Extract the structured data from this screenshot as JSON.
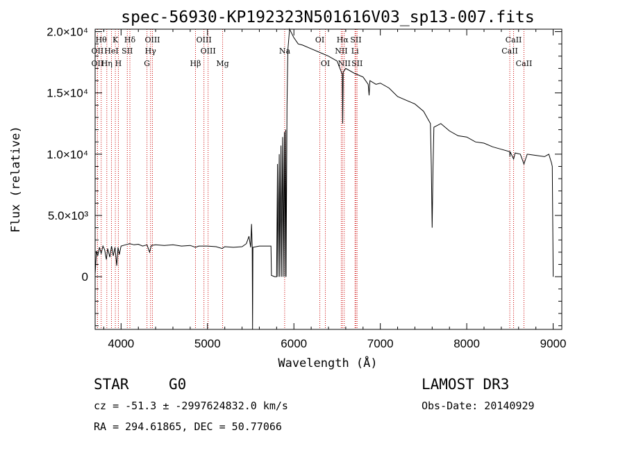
{
  "chart_data": {
    "type": "line",
    "title": "spec-56930-KP192323N501616V03_sp13-007.fits",
    "xlabel": "Wavelength (Å)",
    "ylabel": "Flux (relative)",
    "xlim": [
      3700,
      9100
    ],
    "ylim": [
      -4300,
      20200
    ],
    "x_ticks": [
      {
        "value": 4000,
        "label": "4000"
      },
      {
        "value": 5000,
        "label": "5000"
      },
      {
        "value": 6000,
        "label": "6000"
      },
      {
        "value": 7000,
        "label": "7000"
      },
      {
        "value": 8000,
        "label": "8000"
      },
      {
        "value": 9000,
        "label": "9000"
      }
    ],
    "y_ticks": [
      {
        "value": 0,
        "label": "0"
      },
      {
        "value": 5000,
        "label": "5.0×10³"
      },
      {
        "value": 10000,
        "label": "1.0×10⁴"
      },
      {
        "value": 15000,
        "label": "1.5×10⁴"
      },
      {
        "value": 20000,
        "label": "2.0×10⁴"
      }
    ],
    "spectrum": [
      [
        3700,
        200
      ],
      [
        3715,
        2100
      ],
      [
        3730,
        1700
      ],
      [
        3750,
        2400
      ],
      [
        3770,
        1900
      ],
      [
        3790,
        2500
      ],
      [
        3810,
        2200
      ],
      [
        3830,
        1400
      ],
      [
        3845,
        2300
      ],
      [
        3870,
        1600
      ],
      [
        3890,
        2500
      ],
      [
        3910,
        1700
      ],
      [
        3930,
        2400
      ],
      [
        3950,
        900
      ],
      [
        3965,
        2400
      ],
      [
        3980,
        1800
      ],
      [
        4000,
        2500
      ],
      [
        4050,
        2600
      ],
      [
        4100,
        2700
      ],
      [
        4150,
        2600
      ],
      [
        4200,
        2650
      ],
      [
        4250,
        2500
      ],
      [
        4300,
        2600
      ],
      [
        4330,
        2000
      ],
      [
        4350,
        2550
      ],
      [
        4400,
        2600
      ],
      [
        4500,
        2550
      ],
      [
        4600,
        2600
      ],
      [
        4700,
        2500
      ],
      [
        4800,
        2550
      ],
      [
        4860,
        2400
      ],
      [
        4900,
        2500
      ],
      [
        5000,
        2500
      ],
      [
        5100,
        2450
      ],
      [
        5170,
        2300
      ],
      [
        5200,
        2450
      ],
      [
        5300,
        2400
      ],
      [
        5400,
        2450
      ],
      [
        5450,
        2700
      ],
      [
        5480,
        3300
      ],
      [
        5500,
        2400
      ],
      [
        5510,
        4300
      ],
      [
        5518,
        2400
      ],
      [
        5522,
        -4300
      ],
      [
        5526,
        2400
      ],
      [
        5600,
        2500
      ],
      [
        5700,
        2500
      ],
      [
        5735,
        2500
      ],
      [
        5740,
        100
      ],
      [
        5780,
        0
      ],
      [
        5800,
        0
      ],
      [
        5810,
        9200
      ],
      [
        5815,
        0
      ],
      [
        5830,
        10000
      ],
      [
        5835,
        0
      ],
      [
        5850,
        10700
      ],
      [
        5855,
        0
      ],
      [
        5870,
        11400
      ],
      [
        5875,
        0
      ],
      [
        5890,
        11800
      ],
      [
        5895,
        0
      ],
      [
        5905,
        12000
      ],
      [
        5910,
        0
      ],
      [
        5920,
        14000
      ],
      [
        5930,
        18500
      ],
      [
        5950,
        20200
      ],
      [
        6000,
        19500
      ],
      [
        6050,
        19000
      ],
      [
        6100,
        18900
      ],
      [
        6200,
        18600
      ],
      [
        6300,
        18300
      ],
      [
        6400,
        18000
      ],
      [
        6500,
        17600
      ],
      [
        6560,
        16500
      ],
      [
        6565,
        12500
      ],
      [
        6570,
        16700
      ],
      [
        6600,
        17000
      ],
      [
        6700,
        16600
      ],
      [
        6800,
        16300
      ],
      [
        6860,
        15700
      ],
      [
        6870,
        14800
      ],
      [
        6880,
        16000
      ],
      [
        6950,
        15700
      ],
      [
        7000,
        15800
      ],
      [
        7100,
        15400
      ],
      [
        7200,
        14700
      ],
      [
        7300,
        14400
      ],
      [
        7400,
        14100
      ],
      [
        7500,
        13500
      ],
      [
        7580,
        12500
      ],
      [
        7590,
        9000
      ],
      [
        7600,
        4000
      ],
      [
        7610,
        9000
      ],
      [
        7620,
        12200
      ],
      [
        7700,
        12500
      ],
      [
        7800,
        11900
      ],
      [
        7900,
        11500
      ],
      [
        8000,
        11400
      ],
      [
        8100,
        11000
      ],
      [
        8200,
        10900
      ],
      [
        8300,
        10600
      ],
      [
        8400,
        10400
      ],
      [
        8498,
        10200
      ],
      [
        8500,
        9800
      ],
      [
        8502,
        10200
      ],
      [
        8542,
        9600
      ],
      [
        8560,
        10100
      ],
      [
        8620,
        10000
      ],
      [
        8662,
        9200
      ],
      [
        8700,
        10000
      ],
      [
        8800,
        9900
      ],
      [
        8900,
        9800
      ],
      [
        8950,
        10000
      ],
      [
        8980,
        9300
      ],
      [
        8990,
        9000
      ],
      [
        9000,
        0
      ]
    ],
    "line_marks": [
      {
        "value": 3770,
        "label": "Hθ",
        "row": 1
      },
      {
        "value": 3727,
        "label": "OII",
        "row": 2
      },
      {
        "value": 3727,
        "label": "OII",
        "row": 3
      },
      {
        "value": 3835,
        "label": "Hη",
        "row": 3
      },
      {
        "value": 3889,
        "label": "HeI",
        "row": 2
      },
      {
        "value": 3934,
        "label": "K",
        "row": 1
      },
      {
        "value": 3969,
        "label": "H",
        "row": 3
      },
      {
        "value": 4072,
        "label": "SII",
        "row": 2
      },
      {
        "value": 4102,
        "label": "Hδ",
        "row": 1
      },
      {
        "value": 4300,
        "label": "G",
        "row": 3
      },
      {
        "value": 4341,
        "label": "Hγ",
        "row": 2
      },
      {
        "value": 4363,
        "label": "OIII",
        "row": 1
      },
      {
        "value": 4861,
        "label": "Hβ",
        "row": 3
      },
      {
        "value": 4959,
        "label": "OIII",
        "row": 1
      },
      {
        "value": 5007,
        "label": "OIII",
        "row": 2
      },
      {
        "value": 5175,
        "label": "Mg",
        "row": 3
      },
      {
        "value": 5893,
        "label": "Na",
        "row": 2
      },
      {
        "value": 6300,
        "label": "OI",
        "row": 1
      },
      {
        "value": 6364,
        "label": "OI",
        "row": 3
      },
      {
        "value": 6548,
        "label": "NII",
        "row": 2
      },
      {
        "value": 6563,
        "label": "Hα",
        "row": 1
      },
      {
        "value": 6583,
        "label": "NII",
        "row": 3
      },
      {
        "value": 6707,
        "label": "Li",
        "row": 2
      },
      {
        "value": 6717,
        "label": "SII",
        "row": 1
      },
      {
        "value": 6731,
        "label": "SII",
        "row": 3
      },
      {
        "value": 8498,
        "label": "CaII",
        "row": 2
      },
      {
        "value": 8542,
        "label": "CaII",
        "row": 1
      },
      {
        "value": 8662,
        "label": "CaII",
        "row": 3
      }
    ]
  },
  "info": {
    "class": "STAR",
    "subclass": "G0",
    "cz": "cz = -51.3 ± -2997624832.0 km/s",
    "radec": "RA = 294.61865, DEC =  50.77066",
    "survey": "LAMOST DR3",
    "obsdate": "Obs-Date: 20140929"
  },
  "colors": {
    "spectrum": "#000000",
    "line_marker": "#cc0000",
    "axes": "#000000"
  }
}
